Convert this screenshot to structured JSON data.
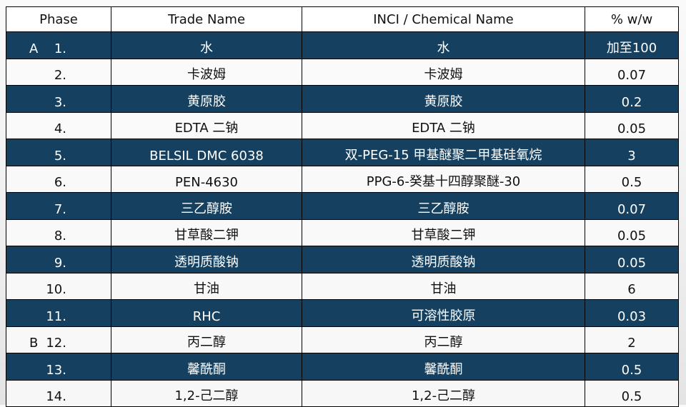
{
  "colors": {
    "dark_row": "#15405f",
    "light_row": "#f5f5f5",
    "border": "#000000"
  },
  "headers": [
    "Phase",
    "Trade Name",
    "INCI / Chemical Name",
    "% w/w"
  ],
  "rows": [
    {
      "phase": "A",
      "no": "1.",
      "trade": "水",
      "inci": "水",
      "ww": "加至100"
    },
    {
      "phase": "",
      "no": "2.",
      "trade": "卡波姆",
      "inci": "卡波姆",
      "ww": "0.07"
    },
    {
      "phase": "",
      "no": "3.",
      "trade": "黄原胶",
      "inci": "黄原胶",
      "ww": "0.2"
    },
    {
      "phase": "",
      "no": "4.",
      "trade": "EDTA 二钠",
      "inci": "EDTA 二钠",
      "ww": "0.05"
    },
    {
      "phase": "",
      "no": "5.",
      "trade": "BELSIL DMC 6038",
      "inci": "双-PEG-15 甲基醚聚二甲基硅氧烷",
      "ww": "3"
    },
    {
      "phase": "",
      "no": "6.",
      "trade": "PEN-4630",
      "inci": "PPG-6-癸基十四醇聚醚-30",
      "ww": "0.5"
    },
    {
      "phase": "",
      "no": "7.",
      "trade": "三乙醇胺",
      "inci": "三乙醇胺",
      "ww": "0.07"
    },
    {
      "phase": "",
      "no": "8.",
      "trade": "甘草酸二钾",
      "inci": "甘草酸二钾",
      "ww": "0.05"
    },
    {
      "phase": "",
      "no": "9.",
      "trade": "透明质酸钠",
      "inci": "透明质酸钠",
      "ww": "0.05"
    },
    {
      "phase": "",
      "no": "10.",
      "trade": "甘油",
      "inci": "甘油",
      "ww": "6"
    },
    {
      "phase": "",
      "no": "11.",
      "trade": "RHC",
      "inci": "可溶性胶原",
      "ww": "0.03"
    },
    {
      "phase": "B",
      "no": "12.",
      "trade": "丙二醇",
      "inci": "丙二醇",
      "ww": "2"
    },
    {
      "phase": "",
      "no": "13.",
      "trade": "馨酰酮",
      "inci": "馨酰酮",
      "ww": "0.5"
    },
    {
      "phase": "",
      "no": "14.",
      "trade": "1,2-己二醇",
      "inci": "1,2-己二醇",
      "ww": "0.5"
    }
  ]
}
